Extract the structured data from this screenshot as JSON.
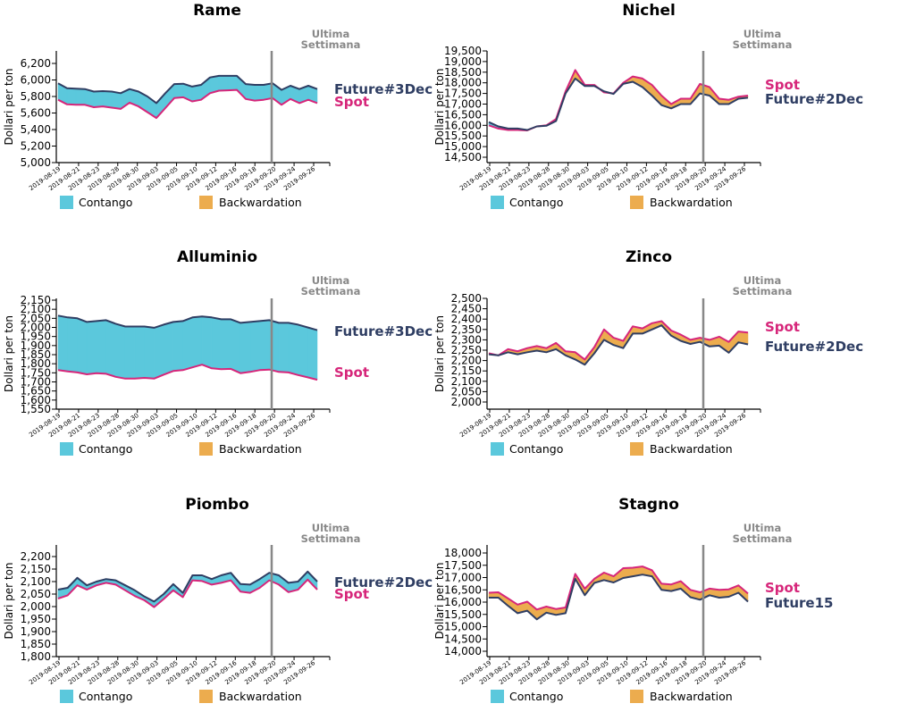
{
  "colors": {
    "contango": "#5bc8dc",
    "backwardation": "#ecac4e",
    "spot": "#d6267a",
    "future": "#2f3e63",
    "last_week_line": "#888888"
  },
  "legend": {
    "contango": "Contango",
    "backwardation": "Backwardation"
  },
  "annotation": {
    "line1": "Ultima",
    "line2": "Settimana"
  },
  "chart_data": [
    {
      "type": "area",
      "title": "Rame",
      "ylabel": "Dollari per ton",
      "ylim": [
        5000,
        6350
      ],
      "yticks": [
        5000,
        5200,
        5400,
        5600,
        5800,
        6000,
        6200
      ],
      "ytick_labels": [
        "5,000",
        "5,200",
        "5,400",
        "5,600",
        "5,800",
        "6,000",
        "6,200"
      ],
      "xtick_labels": [
        "2019-08-19",
        "2019-08-21",
        "2019-08-23",
        "2019-08-28",
        "2019-08-30",
        "2019-09-03",
        "2019-09-05",
        "2019-09-10",
        "2019-09-12",
        "2019-09-16",
        "2019-09-18",
        "2019-09-20",
        "2019-09-24",
        "2019-09-26"
      ],
      "last_week_index": 21.5,
      "series": [
        {
          "name": "Future#3Dec",
          "role": "future",
          "values": [
            5960,
            5900,
            5895,
            5890,
            5860,
            5865,
            5860,
            5840,
            5890,
            5860,
            5800,
            5720,
            5840,
            5950,
            5955,
            5920,
            5940,
            6030,
            6050,
            6050,
            6050,
            5950,
            5940,
            5940,
            5960,
            5880,
            5930,
            5890,
            5930,
            5890
          ]
        },
        {
          "name": "Spot",
          "role": "spot",
          "values": [
            5760,
            5705,
            5700,
            5700,
            5670,
            5680,
            5665,
            5650,
            5725,
            5680,
            5610,
            5540,
            5660,
            5780,
            5790,
            5740,
            5760,
            5840,
            5870,
            5875,
            5880,
            5770,
            5750,
            5760,
            5780,
            5700,
            5770,
            5720,
            5760,
            5720
          ]
        }
      ]
    },
    {
      "type": "area",
      "title": "Nichel",
      "ylabel": "Dollari per ton",
      "ylim": [
        14200,
        19550
      ],
      "yticks": [
        14500,
        15000,
        15500,
        16000,
        16500,
        17000,
        17500,
        18000,
        18500,
        19000,
        19500
      ],
      "ytick_labels": [
        "14,500",
        "15,000",
        "15,500",
        "16,000",
        "16,500",
        "17,000",
        "17,500",
        "18,000",
        "18,500",
        "19,000",
        "19,500"
      ],
      "xtick_labels": [
        "2019-08-19",
        "2019-08-21",
        "2019-08-23",
        "2019-08-28",
        "2019-08-30",
        "2019-09-03",
        "2019-09-05",
        "2019-09-10",
        "2019-09-12",
        "2019-09-16",
        "2019-09-18",
        "2019-09-20",
        "2019-09-24",
        "2019-09-26"
      ],
      "last_week_index": 22,
      "series": [
        {
          "name": "Spot",
          "role": "spot",
          "values": [
            16000,
            15850,
            15780,
            15780,
            15760,
            15950,
            16000,
            16300,
            17600,
            18600,
            17900,
            17900,
            17550,
            17500,
            18000,
            18300,
            18200,
            17900,
            17400,
            17000,
            17250,
            17250,
            17950,
            17800,
            17250,
            17200,
            17350,
            17400
          ]
        },
        {
          "name": "Future#2Dec",
          "role": "future",
          "values": [
            16150,
            15950,
            15850,
            15850,
            15780,
            15950,
            15980,
            16200,
            17500,
            18200,
            17850,
            17850,
            17600,
            17480,
            17950,
            18050,
            17800,
            17400,
            16950,
            16800,
            17000,
            17000,
            17500,
            17400,
            17000,
            17000,
            17250,
            17300
          ]
        }
      ]
    },
    {
      "type": "area",
      "title": "Alluminio",
      "ylabel": "Dollari per ton",
      "ylim": [
        1550,
        2150
      ],
      "yticks": [
        1550,
        1600,
        1650,
        1700,
        1750,
        1800,
        1850,
        1900,
        1950,
        2000,
        2050,
        2100,
        2150
      ],
      "ytick_labels": [
        "1,550",
        "1,600",
        "1,650",
        "1,700",
        "1,750",
        "1,800",
        "1,850",
        "1,900",
        "1,950",
        "2,000",
        "2,050",
        "2,100",
        "2,150"
      ],
      "xtick_labels": [
        "2019-08-19",
        "2019-08-21",
        "2019-08-23",
        "2019-08-28",
        "2019-08-30",
        "2019-09-03",
        "2019-09-05",
        "2019-09-10",
        "2019-09-12",
        "2019-09-16",
        "2019-09-18",
        "2019-09-20",
        "2019-09-24",
        "2019-09-26"
      ],
      "last_week_index": 22,
      "series": [
        {
          "name": "Future#3Dec",
          "role": "future",
          "values": [
            2065,
            2055,
            2050,
            2030,
            2035,
            2040,
            2020,
            2005,
            2005,
            2005,
            1998,
            2015,
            2030,
            2035,
            2055,
            2060,
            2055,
            2045,
            2045,
            2025,
            2030,
            2035,
            2040,
            2025,
            2025,
            2015,
            2000,
            1985
          ]
        },
        {
          "name": "Spot",
          "role": "spot",
          "values": [
            1765,
            1758,
            1752,
            1742,
            1748,
            1745,
            1728,
            1718,
            1718,
            1722,
            1718,
            1740,
            1760,
            1765,
            1780,
            1795,
            1775,
            1770,
            1772,
            1748,
            1755,
            1765,
            1768,
            1755,
            1752,
            1738,
            1725,
            1712
          ]
        }
      ]
    },
    {
      "type": "area",
      "title": "Zinco",
      "ylabel": "Dollari per ton",
      "ylim": [
        1960,
        2505
      ],
      "yticks": [
        2000,
        2050,
        2100,
        2150,
        2200,
        2250,
        2300,
        2350,
        2400,
        2450,
        2500
      ],
      "ytick_labels": [
        "2,000",
        "2,050",
        "2,100",
        "2,150",
        "2,200",
        "2,250",
        "2,300",
        "2,350",
        "2,400",
        "2,450",
        "2,500"
      ],
      "xtick_labels": [
        "2019-08-19",
        "2019-08-21",
        "2019-08-23",
        "2019-08-28",
        "2019-08-30",
        "2019-09-03",
        "2019-09-05",
        "2019-09-10",
        "2019-09-12",
        "2019-09-16",
        "2019-09-18",
        "2019-09-20",
        "2019-09-24",
        "2019-09-26"
      ],
      "last_week_index": 22,
      "series": [
        {
          "name": "Spot",
          "role": "spot",
          "values": [
            2235,
            2225,
            2255,
            2245,
            2260,
            2270,
            2260,
            2285,
            2245,
            2240,
            2205,
            2265,
            2350,
            2310,
            2295,
            2365,
            2355,
            2380,
            2390,
            2345,
            2325,
            2300,
            2310,
            2300,
            2315,
            2290,
            2340,
            2335
          ]
        },
        {
          "name": "Future#2Dec",
          "role": "future",
          "values": [
            2230,
            2225,
            2240,
            2230,
            2240,
            2248,
            2240,
            2255,
            2225,
            2205,
            2180,
            2235,
            2300,
            2275,
            2260,
            2330,
            2330,
            2350,
            2370,
            2320,
            2295,
            2280,
            2290,
            2268,
            2272,
            2238,
            2288,
            2278
          ]
        }
      ]
    },
    {
      "type": "area",
      "title": "Piombo",
      "ylabel": "Dollari per ton",
      "ylim": [
        1800,
        2245
      ],
      "yticks": [
        1800,
        1850,
        1900,
        1950,
        2000,
        2050,
        2100,
        2150,
        2200
      ],
      "ytick_labels": [
        "1,800",
        "1,850",
        "1,900",
        "1,950",
        "2,000",
        "2,050",
        "2,100",
        "2,150",
        "2,200"
      ],
      "xtick_labels": [
        "2019-08-19",
        "2019-08-21",
        "2019-08-23",
        "2019-08-28",
        "2019-08-30",
        "2019-09-03",
        "2019-09-05",
        "2019-09-10",
        "2019-09-12",
        "2019-09-16",
        "2019-09-18",
        "2019-09-20",
        "2019-09-24",
        "2019-09-26"
      ],
      "last_week_index": 21.5,
      "series": [
        {
          "name": "Future#2Dec",
          "role": "future",
          "values": [
            2068,
            2075,
            2115,
            2085,
            2100,
            2110,
            2105,
            2085,
            2065,
            2040,
            2020,
            2050,
            2090,
            2055,
            2125,
            2125,
            2110,
            2125,
            2135,
            2090,
            2088,
            2110,
            2135,
            2125,
            2095,
            2100,
            2140,
            2100
          ]
        },
        {
          "name": "Spot",
          "role": "spot",
          "values": [
            2032,
            2045,
            2085,
            2068,
            2085,
            2095,
            2088,
            2065,
            2042,
            2025,
            1998,
            2030,
            2065,
            2038,
            2105,
            2102,
            2088,
            2095,
            2105,
            2060,
            2055,
            2075,
            2105,
            2088,
            2058,
            2068,
            2108,
            2068
          ]
        }
      ]
    },
    {
      "type": "area",
      "title": "Stagno",
      "ylabel": "Dollari per ton",
      "ylim": [
        13800,
        18300
      ],
      "yticks": [
        14000,
        14500,
        15000,
        15500,
        16000,
        16500,
        17000,
        17500,
        18000
      ],
      "ytick_labels": [
        "14,000",
        "14,500",
        "15,000",
        "15,500",
        "16,000",
        "16,500",
        "17,000",
        "17,500",
        "18,000"
      ],
      "xtick_labels": [
        "2019-08-19",
        "2019-08-21",
        "2019-08-23",
        "2019-08-28",
        "2019-08-30",
        "2019-09-03",
        "2019-09-05",
        "2019-09-10",
        "2019-09-12",
        "2019-09-16",
        "2019-09-18",
        "2019-09-20",
        "2019-09-24",
        "2019-09-26"
      ],
      "last_week_index": 22,
      "series": [
        {
          "name": "Spot",
          "role": "spot",
          "values": [
            16380,
            16400,
            16150,
            15900,
            16020,
            15700,
            15820,
            15720,
            15780,
            17150,
            16550,
            16950,
            17200,
            17050,
            17380,
            17400,
            17450,
            17300,
            16750,
            16720,
            16850,
            16500,
            16400,
            16550,
            16500,
            16520,
            16680,
            16350
          ]
        },
        {
          "name": "Future15",
          "role": "future",
          "values": [
            16180,
            16180,
            15850,
            15550,
            15650,
            15300,
            15570,
            15480,
            15550,
            16950,
            16280,
            16780,
            16900,
            16800,
            16980,
            17050,
            17120,
            17050,
            16500,
            16450,
            16550,
            16200,
            16100,
            16280,
            16180,
            16220,
            16380,
            16020
          ]
        }
      ]
    }
  ]
}
